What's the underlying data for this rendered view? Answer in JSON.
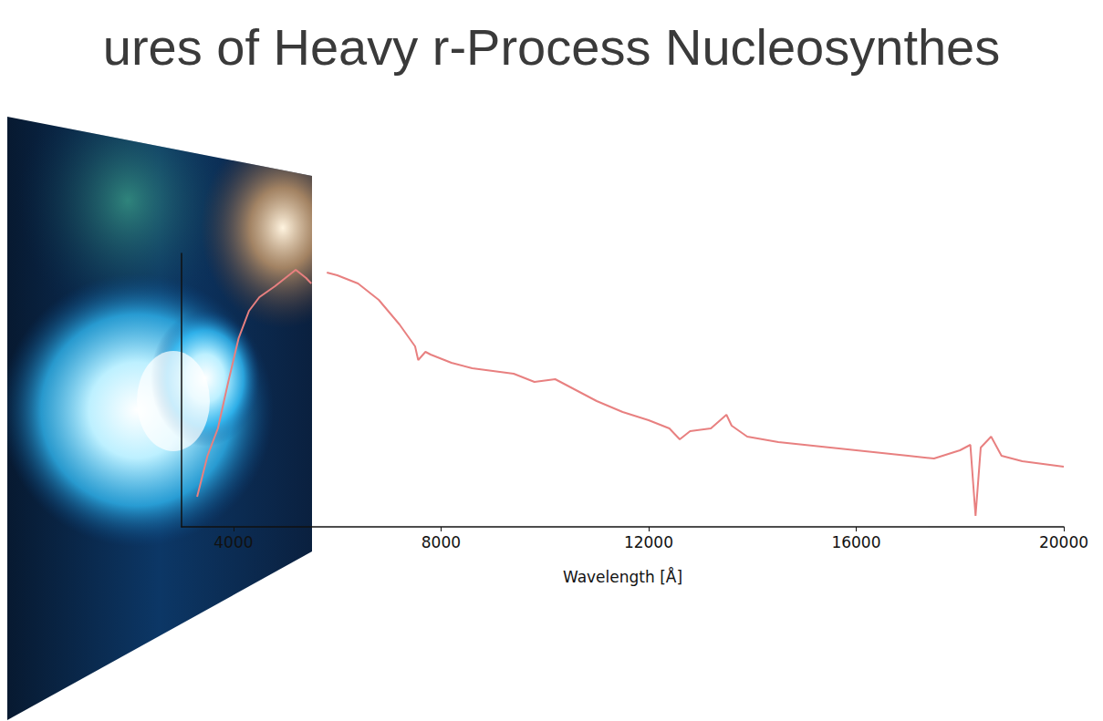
{
  "chart_data": {
    "type": "line",
    "title": "ures of Heavy r-Process Nucleosynthes",
    "x_label": "Wavelength [Å]",
    "x": [
      3300,
      3500,
      3700,
      3900,
      4100,
      4300,
      4500,
      4800,
      5000,
      5200,
      5400,
      5500,
      5650,
      5800,
      6000,
      6400,
      6800,
      7200,
      7500,
      7560,
      7700,
      7800,
      8200,
      8600,
      9000,
      9400,
      9800,
      10200,
      10500,
      11000,
      11500,
      12000,
      12400,
      12600,
      12800,
      13200,
      13500,
      13600,
      13900,
      14500,
      15000,
      15500,
      16000,
      16500,
      17000,
      17500,
      18000,
      18200,
      18300,
      18400,
      18600,
      18800,
      19200,
      19600,
      20000
    ],
    "values": [
      0.11,
      0.26,
      0.36,
      0.53,
      0.69,
      0.79,
      0.84,
      0.88,
      0.91,
      0.94,
      0.91,
      0.89,
      null,
      0.93,
      0.92,
      0.89,
      0.83,
      0.74,
      0.66,
      0.61,
      0.64,
      0.63,
      0.6,
      0.58,
      0.57,
      0.56,
      0.53,
      0.54,
      0.51,
      0.46,
      0.42,
      0.39,
      0.36,
      0.32,
      0.35,
      0.36,
      0.41,
      0.37,
      0.33,
      0.31,
      0.3,
      0.29,
      0.28,
      0.27,
      0.26,
      0.25,
      0.28,
      0.3,
      0.04,
      0.29,
      0.33,
      0.26,
      0.24,
      0.23,
      0.22
    ],
    "color": "#e88080",
    "xlim": [
      3000,
      20000
    ],
    "xticks": [
      4000,
      8000,
      12000,
      16000,
      20000
    ],
    "ylim": [
      0,
      1
    ],
    "yticks": [],
    "tick_labels": "x",
    "grid": false
  }
}
